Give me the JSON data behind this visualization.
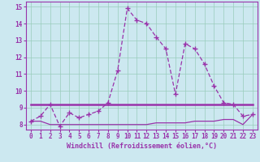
{
  "xlabel": "Windchill (Refroidissement éolien,°C)",
  "hours": [
    0,
    1,
    2,
    3,
    4,
    5,
    6,
    7,
    8,
    9,
    10,
    11,
    12,
    13,
    14,
    15,
    16,
    17,
    18,
    19,
    20,
    21,
    22,
    23
  ],
  "windchill": [
    8.2,
    8.5,
    9.2,
    7.9,
    8.7,
    8.4,
    8.6,
    8.8,
    9.3,
    11.2,
    14.9,
    14.2,
    14.0,
    13.2,
    12.5,
    9.8,
    12.8,
    12.5,
    11.6,
    10.3,
    9.3,
    9.2,
    8.5,
    8.6
  ],
  "flat_line1": [
    9.2,
    9.2,
    9.2,
    9.2,
    9.2,
    9.2,
    9.2,
    9.2,
    9.2,
    9.2,
    9.2,
    9.2,
    9.2,
    9.2,
    9.2,
    9.2,
    9.2,
    9.2,
    9.2,
    9.2,
    9.2,
    9.2,
    9.2,
    9.2
  ],
  "flat_line2": [
    8.2,
    8.2,
    8.0,
    8.0,
    8.0,
    8.0,
    8.0,
    8.0,
    8.0,
    8.0,
    8.0,
    8.0,
    8.0,
    8.1,
    8.1,
    8.1,
    8.1,
    8.2,
    8.2,
    8.2,
    8.3,
    8.3,
    8.0,
    8.6
  ],
  "line_color": "#9933aa",
  "bg_color": "#cce8f0",
  "grid_color": "#99ccbb",
  "ylim": [
    7.7,
    15.3
  ],
  "yticks": [
    8,
    9,
    10,
    11,
    12,
    13,
    14,
    15
  ],
  "tick_fontsize": 5.5,
  "xlabel_fontsize": 6.0
}
